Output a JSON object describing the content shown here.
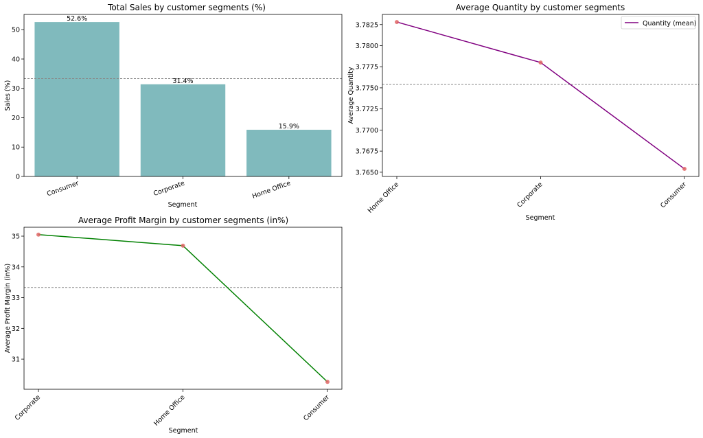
{
  "chart_data": [
    {
      "type": "bar",
      "title": "Total Sales by customer segments (%)",
      "xlabel": "Segment",
      "ylabel": "Sales (%)",
      "categories": [
        "Consumer",
        "Corporate",
        "Home Office"
      ],
      "values": [
        52.6,
        31.4,
        15.9
      ],
      "data_labels": [
        "52.6%",
        "31.4%",
        "15.9%"
      ],
      "yticks": [
        0,
        10,
        20,
        30,
        40,
        50
      ],
      "ylim": [
        0,
        55.2
      ],
      "reference_line": 33.33,
      "bar_color": "#80BABD",
      "grid": false
    },
    {
      "type": "line",
      "title": "Average Quantity by customer segments",
      "xlabel": "Segment",
      "ylabel": "Average Quantity",
      "categories": [
        "Home Office",
        "Corporate",
        "Consumer"
      ],
      "values": [
        3.7828,
        3.778,
        3.7654
      ],
      "yticks": [
        "3.7650",
        "3.7675",
        "3.7700",
        "3.7725",
        "3.7750",
        "3.7775",
        "3.7800",
        "3.7825"
      ],
      "ylim": [
        3.7645,
        3.7837
      ],
      "reference_line": 3.7754,
      "series": [
        {
          "name": "Quantity (mean)",
          "values": [
            3.7828,
            3.778,
            3.7654
          ]
        }
      ],
      "legend": "top-right",
      "line_color": "#800080",
      "marker_color": "#E06666",
      "grid": false
    },
    {
      "type": "line",
      "title": "Average Profit Margin by customer segments (in%)",
      "xlabel": "Segment",
      "ylabel": "Average Profit Margin (in%)",
      "categories": [
        "Corporate",
        "Home Office",
        "Consumer"
      ],
      "values": [
        35.05,
        34.69,
        30.26
      ],
      "yticks": [
        31,
        32,
        33,
        34,
        35
      ],
      "ylim": [
        30.02,
        35.29
      ],
      "reference_line": 33.33,
      "line_color": "#008000",
      "marker_color": "#E06666",
      "grid": false
    }
  ]
}
